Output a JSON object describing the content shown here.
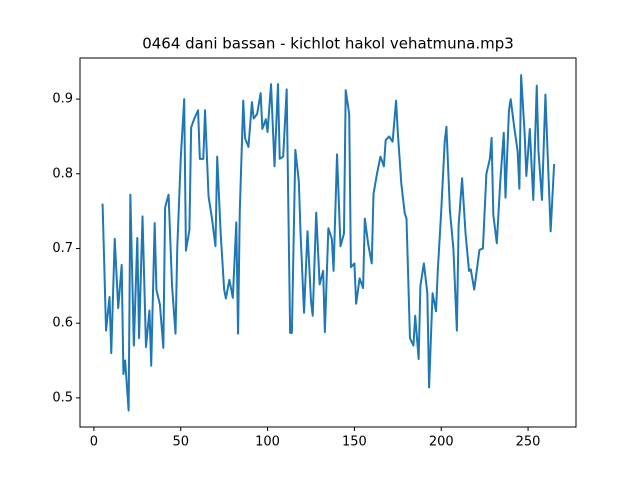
{
  "chart_data": {
    "type": "line",
    "title": "0464 dani bassan - kichlot hakol vehatmuna.mp3",
    "color": "#1f77b4",
    "x": [
      5,
      7,
      9,
      10,
      12,
      14,
      16,
      17,
      18,
      20,
      21,
      23,
      25,
      26,
      28,
      30,
      32,
      33,
      35,
      36,
      38,
      40,
      41,
      43,
      45,
      47,
      48,
      50,
      52,
      53,
      55,
      56,
      58,
      60,
      61,
      63,
      64,
      66,
      68,
      70,
      71,
      73,
      75,
      76,
      78,
      80,
      82,
      83,
      84,
      86,
      87,
      89,
      91,
      92,
      94,
      96,
      97,
      99,
      100,
      102,
      104,
      106,
      107,
      109,
      111,
      113,
      114,
      116,
      118,
      119,
      121,
      123,
      125,
      126,
      128,
      130,
      132,
      133,
      135,
      137,
      138,
      140,
      142,
      144,
      145,
      147,
      148,
      150,
      151,
      153,
      155,
      156,
      158,
      160,
      161,
      163,
      165,
      167,
      168,
      170,
      172,
      174,
      175,
      177,
      179,
      180,
      182,
      184,
      185,
      187,
      188,
      190,
      192,
      193,
      195,
      197,
      198,
      200,
      202,
      203,
      205,
      207,
      209,
      210,
      212,
      214,
      216,
      217,
      219,
      221,
      222,
      224,
      226,
      228,
      229,
      230,
      232,
      234,
      236,
      237,
      239,
      240,
      242,
      244,
      245,
      246,
      248,
      249,
      251,
      253,
      255,
      256,
      258,
      260,
      261,
      263,
      265
    ],
    "values": [
      0.76,
      0.59,
      0.635,
      0.56,
      0.713,
      0.62,
      0.678,
      0.532,
      0.55,
      0.483,
      0.772,
      0.57,
      0.714,
      0.58,
      0.743,
      0.568,
      0.617,
      0.543,
      0.734,
      0.645,
      0.625,
      0.567,
      0.755,
      0.772,
      0.65,
      0.586,
      0.7,
      0.82,
      0.9,
      0.697,
      0.725,
      0.862,
      0.875,
      0.885,
      0.82,
      0.82,
      0.885,
      0.77,
      0.74,
      0.703,
      0.823,
      0.72,
      0.645,
      0.633,
      0.658,
      0.634,
      0.735,
      0.586,
      0.75,
      0.898,
      0.848,
      0.836,
      0.896,
      0.874,
      0.88,
      0.908,
      0.86,
      0.873,
      0.856,
      0.92,
      0.81,
      0.92,
      0.82,
      0.823,
      0.913,
      0.587,
      0.587,
      0.832,
      0.79,
      0.72,
      0.614,
      0.723,
      0.63,
      0.61,
      0.748,
      0.652,
      0.67,
      0.588,
      0.727,
      0.713,
      0.67,
      0.826,
      0.703,
      0.72,
      0.912,
      0.88,
      0.675,
      0.68,
      0.626,
      0.66,
      0.647,
      0.74,
      0.705,
      0.68,
      0.773,
      0.8,
      0.823,
      0.81,
      0.845,
      0.85,
      0.843,
      0.898,
      0.855,
      0.787,
      0.747,
      0.74,
      0.58,
      0.57,
      0.61,
      0.552,
      0.65,
      0.68,
      0.64,
      0.514,
      0.64,
      0.616,
      0.67,
      0.75,
      0.843,
      0.863,
      0.75,
      0.7,
      0.59,
      0.73,
      0.794,
      0.72,
      0.67,
      0.672,
      0.645,
      0.68,
      0.698,
      0.7,
      0.8,
      0.82,
      0.848,
      0.745,
      0.707,
      0.79,
      0.855,
      0.768,
      0.885,
      0.9,
      0.863,
      0.83,
      0.78,
      0.932,
      0.855,
      0.797,
      0.86,
      0.765,
      0.918,
      0.83,
      0.765,
      0.906,
      0.843,
      0.723,
      0.813
    ],
    "xlim": [
      -8,
      277.6
    ],
    "ylim": [
      0.461,
      0.955
    ],
    "xticks": [
      0,
      50,
      100,
      150,
      200,
      250
    ],
    "yticks": [
      0.5,
      0.6,
      0.7,
      0.8,
      0.9
    ]
  }
}
